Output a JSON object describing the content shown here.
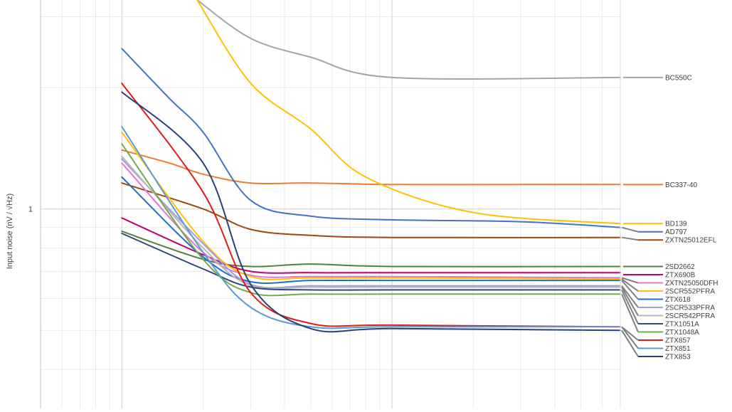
{
  "chart_data": {
    "type": "line",
    "title": "",
    "xlabel": "",
    "ylabel": "Input noise (nV / √Hz)",
    "x_scale": "log",
    "y_scale": "log",
    "xlim": [
      0.5,
      70
    ],
    "ylim": [
      0.32,
      3.3
    ],
    "y_tick_labels": [
      {
        "value": 1,
        "label": "1"
      }
    ],
    "grid": true,
    "legend_position": "right",
    "series": [
      {
        "name": "BC550C",
        "color": "#a5a5a5",
        "points": [
          [
            1.9,
            3.3
          ],
          [
            3,
            2.65
          ],
          [
            5,
            2.38
          ],
          [
            10,
            2.12
          ],
          [
            70,
            2.12
          ]
        ]
      },
      {
        "name": "BC337-40",
        "color": "#ed7d31",
        "points": [
          [
            1,
            1.4
          ],
          [
            1.5,
            1.3
          ],
          [
            2,
            1.22
          ],
          [
            3,
            1.16
          ],
          [
            5,
            1.16
          ],
          [
            10,
            1.15
          ],
          [
            30,
            1.15
          ],
          [
            70,
            1.15
          ]
        ]
      },
      {
        "name": "BD139",
        "color": "#ffc000",
        "points": [
          [
            1.9,
            3.3
          ],
          [
            3,
            2.05
          ],
          [
            5,
            1.58
          ],
          [
            8,
            1.2
          ],
          [
            20,
            0.98
          ],
          [
            70,
            0.92
          ]
        ]
      },
      {
        "name": "AD797",
        "color": "#4472c4",
        "points": [
          [
            1,
            2.5
          ],
          [
            1.5,
            1.88
          ],
          [
            2,
            1.55
          ],
          [
            3,
            1.05
          ],
          [
            5,
            0.96
          ],
          [
            10,
            0.94
          ],
          [
            30,
            0.93
          ],
          [
            70,
            0.9
          ]
        ]
      },
      {
        "name": "ZXTN25012EFL",
        "color": "#9e480e",
        "points": [
          [
            1,
            1.16
          ],
          [
            2,
            1.0
          ],
          [
            3,
            0.89
          ],
          [
            5,
            0.86
          ],
          [
            10,
            0.85
          ],
          [
            70,
            0.85
          ]
        ]
      },
      {
        "name": "2SD2662",
        "color": "#548235",
        "points": [
          [
            1,
            0.88
          ],
          [
            2,
            0.75
          ],
          [
            3,
            0.72
          ],
          [
            5,
            0.73
          ],
          [
            10,
            0.72
          ],
          [
            70,
            0.72
          ]
        ]
      },
      {
        "name": "ZTX690B",
        "color": "#c00070",
        "points": [
          [
            1,
            0.95
          ],
          [
            2,
            0.77
          ],
          [
            3,
            0.7
          ],
          [
            5,
            0.695
          ],
          [
            10,
            0.695
          ],
          [
            70,
            0.695
          ]
        ]
      },
      {
        "name": "ZXTN25050DFH",
        "color": "#e377d4",
        "points": [
          [
            1,
            1.3
          ],
          [
            2,
            0.78
          ],
          [
            3,
            0.685
          ],
          [
            5,
            0.68
          ],
          [
            10,
            0.68
          ],
          [
            70,
            0.675
          ]
        ]
      },
      {
        "name": "2SCR552PFRA",
        "color": "#ffc000",
        "points": [
          [
            1,
            1.55
          ],
          [
            2,
            0.83
          ],
          [
            3,
            0.68
          ],
          [
            5,
            0.675
          ],
          [
            10,
            0.675
          ],
          [
            70,
            0.67
          ]
        ]
      },
      {
        "name": "ZTX618",
        "color": "#1f6fd0",
        "points": [
          [
            1,
            1.2
          ],
          [
            2,
            0.76
          ],
          [
            3,
            0.66
          ],
          [
            5,
            0.665
          ],
          [
            10,
            0.665
          ],
          [
            70,
            0.665
          ]
        ]
      },
      {
        "name": "2SCR533PFRA",
        "color": "#a89ae0",
        "points": [
          [
            1,
            1.33
          ],
          [
            2,
            0.82
          ],
          [
            3,
            0.65
          ],
          [
            5,
            0.645
          ],
          [
            10,
            0.645
          ],
          [
            70,
            0.645
          ]
        ]
      },
      {
        "name": "2SCR542PFRA",
        "color": "#b8b8b8",
        "points": [
          [
            1,
            1.35
          ],
          [
            2,
            0.8
          ],
          [
            3,
            0.645
          ],
          [
            5,
            0.64
          ],
          [
            10,
            0.64
          ],
          [
            70,
            0.64
          ]
        ]
      },
      {
        "name": "ZTX1051A",
        "color": "#2e4a7d",
        "points": [
          [
            1,
            0.87
          ],
          [
            2,
            0.71
          ],
          [
            3,
            0.64
          ],
          [
            5,
            0.63
          ],
          [
            10,
            0.63
          ],
          [
            70,
            0.63
          ]
        ]
      },
      {
        "name": "ZTX1048A",
        "color": "#70ad47",
        "points": [
          [
            1,
            1.45
          ],
          [
            2,
            0.75
          ],
          [
            3,
            0.62
          ],
          [
            5,
            0.615
          ],
          [
            10,
            0.615
          ],
          [
            70,
            0.615
          ]
        ]
      },
      {
        "name": "ZTX857",
        "color": "#e31a1c",
        "points": [
          [
            1,
            2.05
          ],
          [
            2,
            1.1
          ],
          [
            3,
            0.62
          ],
          [
            5,
            0.52
          ],
          [
            10,
            0.515
          ],
          [
            70,
            0.51
          ]
        ]
      },
      {
        "name": "ZTX851",
        "color": "#5b9bd5",
        "points": [
          [
            1,
            1.6
          ],
          [
            2,
            0.78
          ],
          [
            3,
            0.57
          ],
          [
            5,
            0.51
          ],
          [
            10,
            0.51
          ],
          [
            70,
            0.51
          ]
        ]
      },
      {
        "name": "ZTX853",
        "color": "#264478",
        "points": [
          [
            1,
            1.95
          ],
          [
            2,
            1.3
          ],
          [
            3,
            0.65
          ],
          [
            5,
            0.505
          ],
          [
            10,
            0.505
          ],
          [
            70,
            0.5
          ]
        ]
      }
    ]
  }
}
